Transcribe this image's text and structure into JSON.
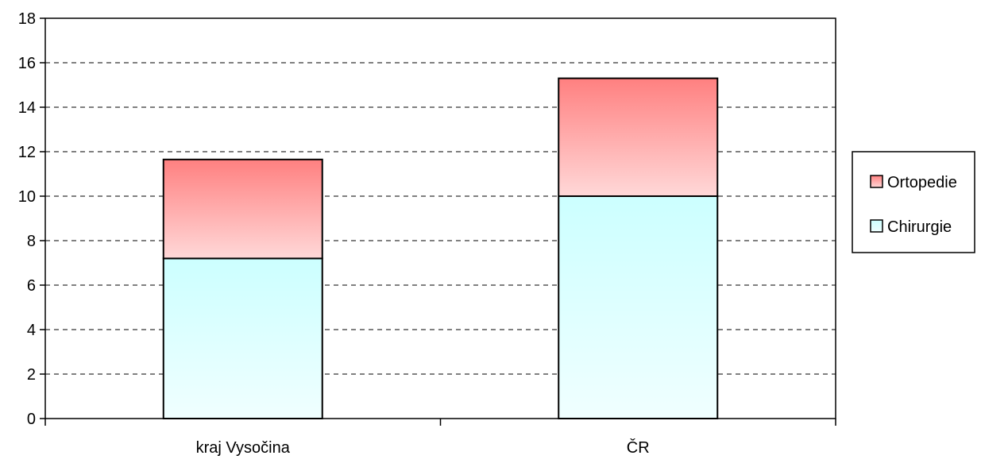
{
  "chart_data": {
    "type": "bar",
    "stacked": true,
    "categories": [
      "kraj Vysočina",
      "ČR"
    ],
    "series": [
      {
        "name": "Chirurgie",
        "values": [
          7.2,
          10.0
        ],
        "color_top": "#ccffff",
        "color_bottom": "#f0ffff"
      },
      {
        "name": "Ortopedie",
        "values": [
          4.45,
          5.3
        ],
        "color_top": "#ff8080",
        "color_bottom": "#ffd8d8"
      }
    ],
    "title": "",
    "xlabel": "",
    "ylabel": "",
    "ylim": [
      0,
      18
    ],
    "yticks": [
      0,
      2,
      4,
      6,
      8,
      10,
      12,
      14,
      16,
      18
    ],
    "ytick_labels": [
      "0",
      "2",
      "4",
      "6",
      "8",
      "10",
      "12",
      "14",
      "16",
      "18"
    ],
    "grid": "horizontal-dashed",
    "legend_position": "right",
    "legend_order": [
      "Ortopedie",
      "Chirurgie"
    ]
  }
}
